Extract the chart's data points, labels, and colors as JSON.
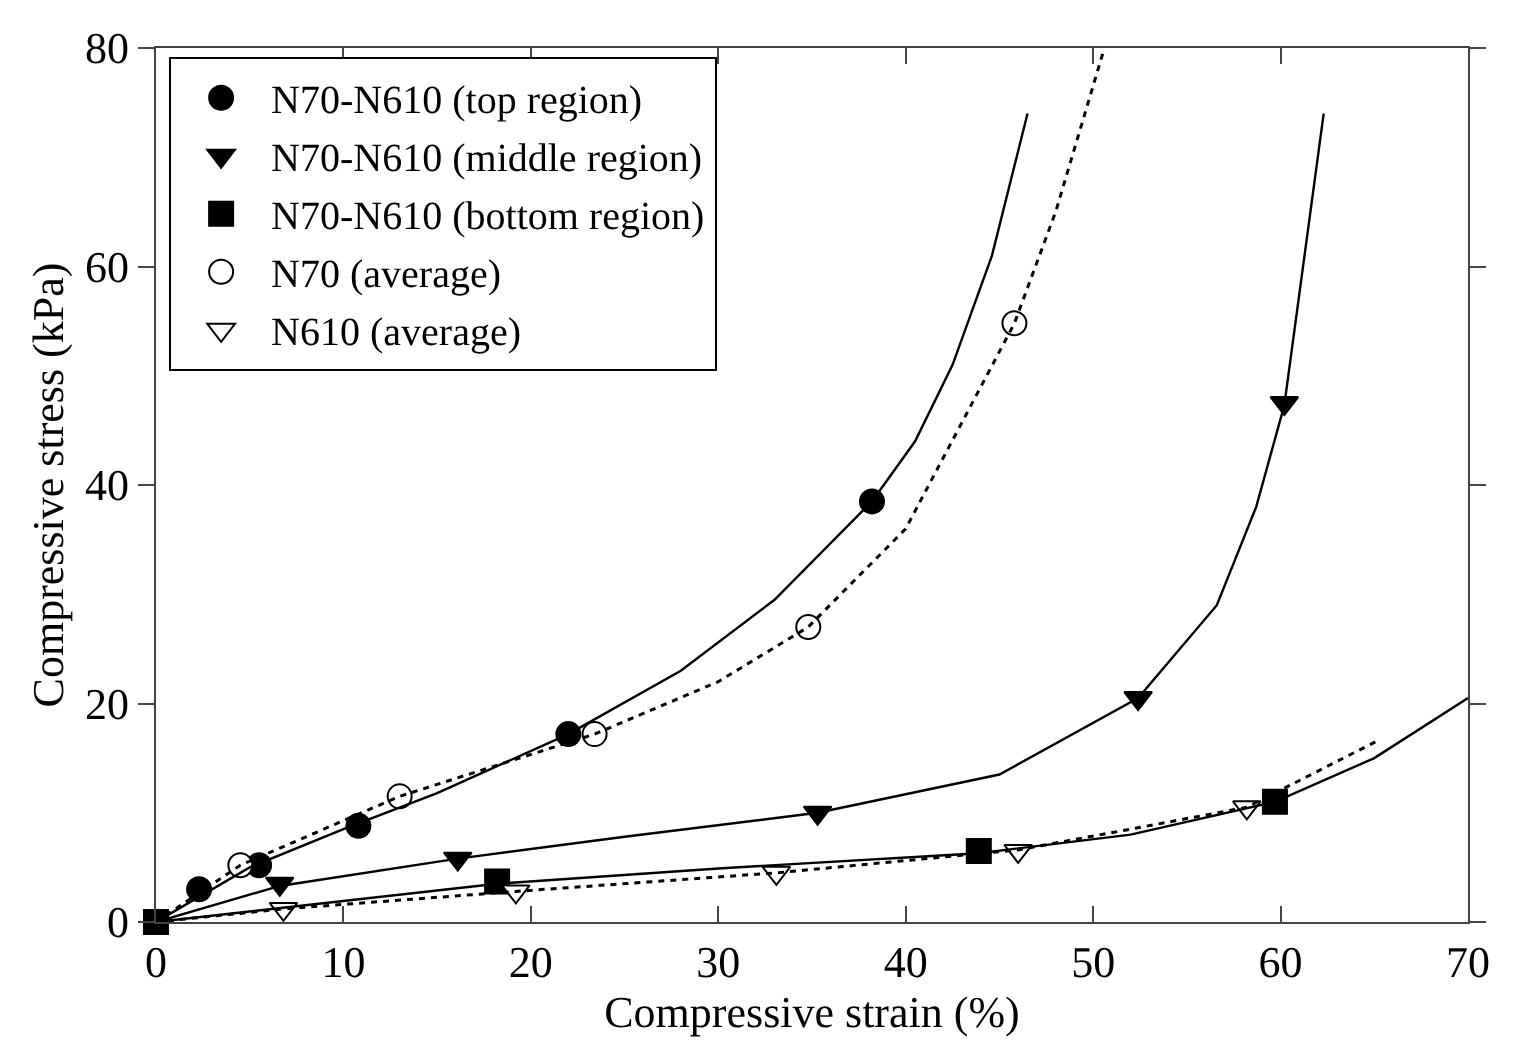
{
  "chart_data": {
    "type": "scatter",
    "xlabel": "Compressive strain (%)",
    "ylabel": "Compressive stress (kPa)",
    "xlim": [
      0,
      70
    ],
    "ylim": [
      0,
      80
    ],
    "xticks": [
      0,
      10,
      20,
      30,
      40,
      50,
      60,
      70
    ],
    "yticks": [
      0,
      20,
      40,
      60,
      80
    ],
    "legend": "top left",
    "series": [
      {
        "name": "N70-N610 (top region)",
        "marker": "circle",
        "color": "#000000",
        "x": [
          2.3,
          5.5,
          10.8,
          22,
          38.2
        ],
        "values": [
          3,
          5.2,
          8.8,
          17.2,
          38.5
        ]
      },
      {
        "name": "N70-N610 (middle region)",
        "marker": "triangle",
        "color": "#000000",
        "x": [
          6.6,
          16.1,
          35.3,
          52.4,
          60.2
        ],
        "values": [
          3.5,
          5.8,
          10,
          20.5,
          47.5
        ]
      },
      {
        "name": "N70-N610 (bottom region)",
        "marker": "square",
        "color": "#000000",
        "x": [
          0,
          18.2,
          43.9,
          59.7
        ],
        "values": [
          0,
          3.7,
          6.5,
          11
        ]
      },
      {
        "name": "N70 (average)",
        "marker": "circle",
        "color": "#ffffff",
        "x": [
          4.5,
          13,
          23.4,
          34.8,
          45.8
        ],
        "values": [
          5.2,
          11.5,
          17.2,
          27,
          54.8
        ]
      },
      {
        "name": "N610 (average)",
        "marker": "triangle",
        "color": "#ffffff",
        "x": [
          6.8,
          19.2,
          33.1,
          46,
          58.2
        ],
        "values": [
          1.2,
          2.8,
          4.5,
          6.5,
          10.5
        ]
      },
      {
        "type": "line",
        "line_style": "solid",
        "color": "#000000",
        "x": [
          0,
          5,
          10,
          15,
          22,
          28,
          33,
          38.2,
          40.5,
          42.5,
          44.6,
          46.5
        ],
        "values": [
          0,
          5,
          8.5,
          11.8,
          17.2,
          23,
          29.5,
          38.5,
          44,
          51,
          61,
          74
        ]
      },
      {
        "type": "line",
        "line_style": "solid",
        "color": "#000000",
        "x": [
          0,
          6.6,
          16.1,
          25,
          35.3,
          45,
          52.4,
          56.6,
          58.7,
          60.2,
          62.3
        ],
        "values": [
          0,
          3.3,
          5.8,
          7.8,
          10,
          13.5,
          20.5,
          29,
          38,
          47.3,
          74
        ]
      },
      {
        "type": "line",
        "line_style": "solid",
        "color": "#000000",
        "x": [
          0,
          18.2,
          30,
          43.9,
          52,
          59.7,
          65,
          70
        ],
        "values": [
          0,
          3.5,
          4.9,
          6.3,
          8,
          11,
          15,
          20.5
        ]
      },
      {
        "type": "line",
        "line_style": "dotted",
        "color": "#000000",
        "x": [
          0,
          4.5,
          13,
          23.4,
          30,
          34.8,
          40,
          45.8,
          48,
          50.6
        ],
        "values": [
          0,
          5.2,
          11.5,
          17.2,
          22,
          27,
          36,
          54.8,
          65,
          80
        ]
      },
      {
        "type": "line",
        "line_style": "dotted",
        "color": "#000000",
        "x": [
          0,
          6.8,
          19.2,
          33.1,
          46,
          52,
          58.2,
          65.3
        ],
        "values": [
          0,
          1.2,
          2.8,
          4.5,
          6.6,
          8.5,
          10.5,
          16.7
        ]
      }
    ]
  }
}
